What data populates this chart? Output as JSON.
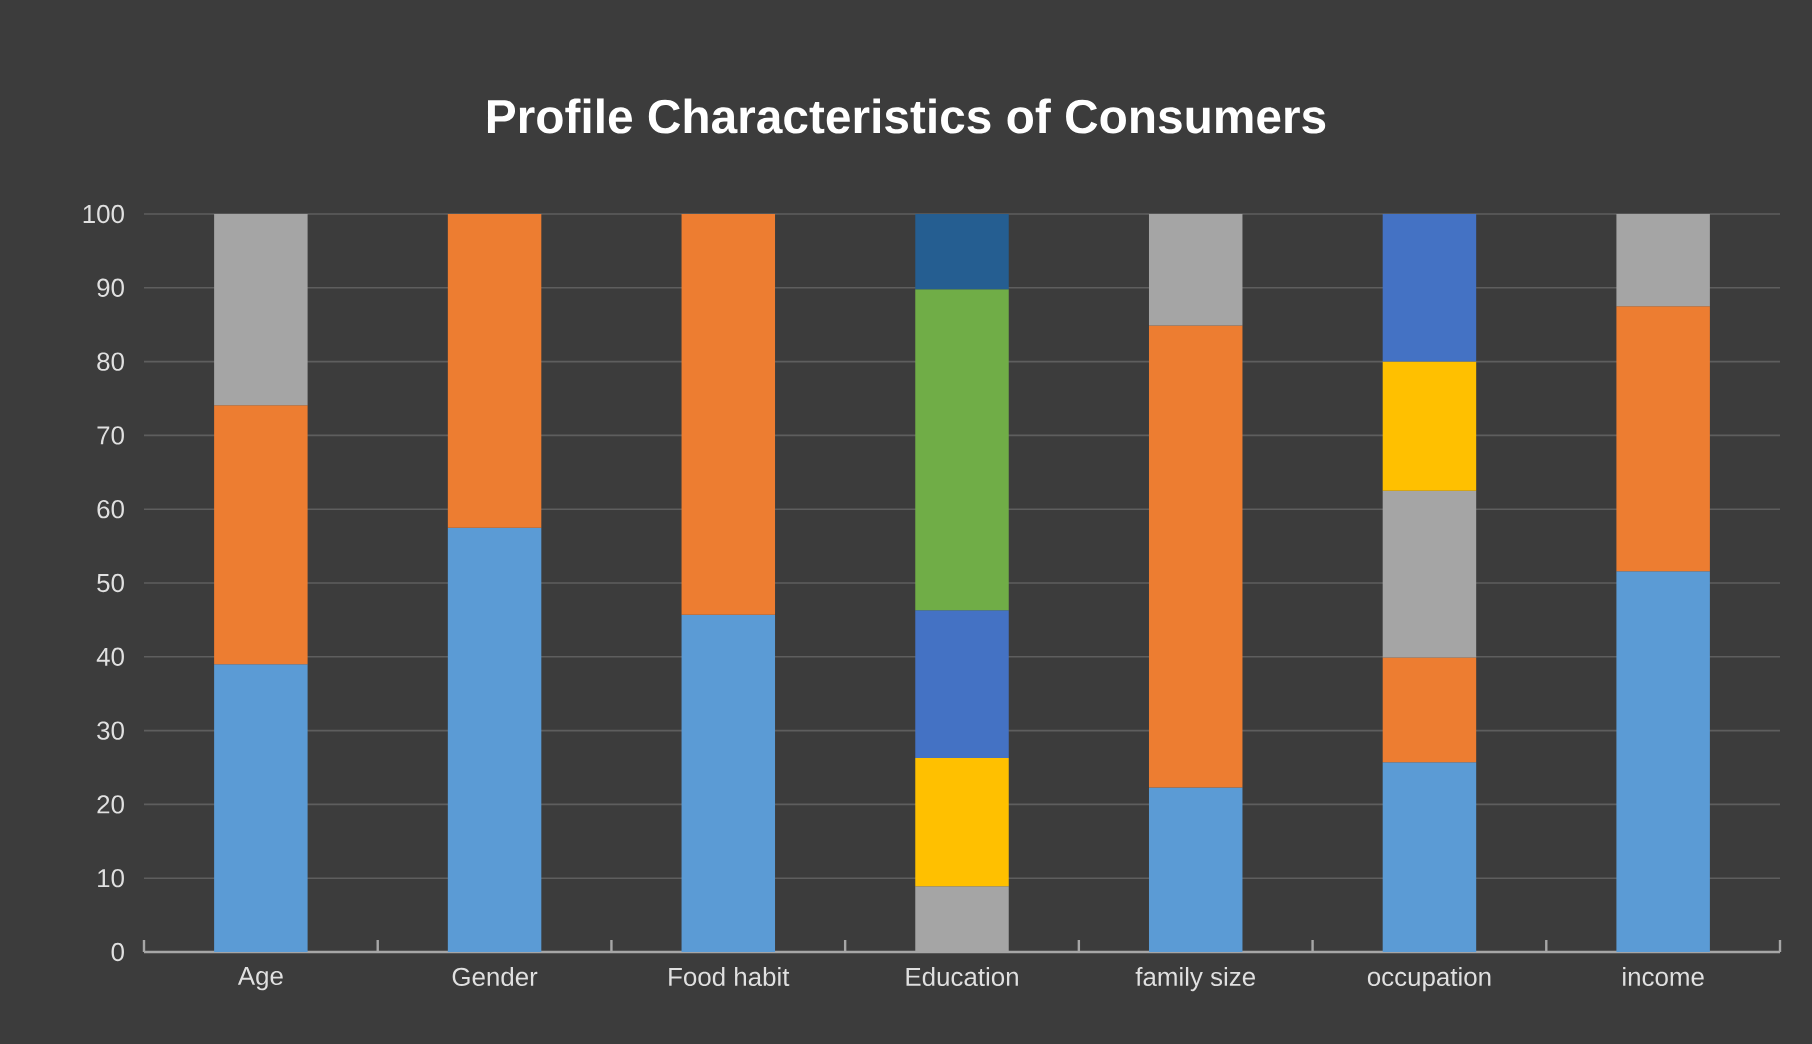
{
  "chart_data": {
    "type": "bar",
    "stacked": true,
    "title": "Profile Characteristics of Consumers",
    "categories": [
      "Age",
      "Gender",
      "Food habit",
      "Education",
      "family size",
      "occupation",
      "income"
    ],
    "series": [
      {
        "color": "#5b9bd5",
        "values": [
          39,
          57.5,
          45.7,
          null,
          22.3,
          25.7,
          51.6
        ]
      },
      {
        "color": "#ed7d31",
        "values": [
          35.1,
          42.5,
          54.3,
          null,
          62.6,
          14.2,
          35.9
        ]
      },
      {
        "color": "#a5a5a5",
        "values": [
          25.9,
          null,
          null,
          8.9,
          15.1,
          22.6,
          12.5
        ]
      },
      {
        "color": "#ffc000",
        "values": [
          null,
          null,
          null,
          17.4,
          null,
          17.5,
          null
        ]
      },
      {
        "color": "#4472c4",
        "values": [
          null,
          null,
          null,
          20,
          null,
          20,
          null
        ]
      },
      {
        "color": "#70ad47",
        "values": [
          null,
          null,
          null,
          43.5,
          null,
          null,
          null
        ]
      },
      {
        "color": "#255e91",
        "values": [
          null,
          null,
          null,
          10.2,
          null,
          null,
          null
        ]
      }
    ],
    "ylim": [
      0,
      100
    ],
    "yticks": [
      0,
      10,
      20,
      30,
      40,
      50,
      60,
      70,
      80,
      90,
      100
    ],
    "grid": "y"
  }
}
